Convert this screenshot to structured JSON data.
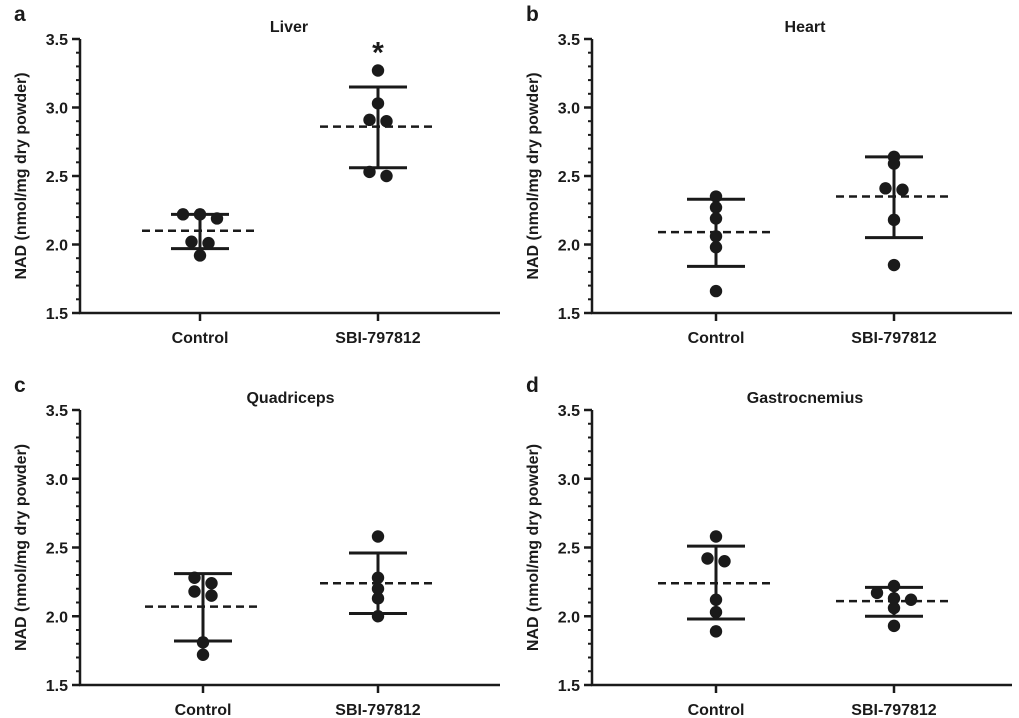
{
  "figure": {
    "style": {
      "ink": "#1a1a1a",
      "mean_line": "dashed",
      "error_bars": "mean ± SD"
    }
  },
  "chart_data": [
    {
      "panel": "a",
      "type": "scatter",
      "title": "Liver",
      "ylabel": "NAD (nmol/mg dry powder)",
      "ylim": [
        1.5,
        3.5
      ],
      "yticks": [
        1.5,
        2.0,
        2.5,
        3.0,
        3.5
      ],
      "ytick_labels": [
        "1.5",
        "2.0",
        "2.5",
        "3.0",
        "3.5"
      ],
      "categories": [
        "Control",
        "SBI-797812"
      ],
      "groups": [
        {
          "category": "Control",
          "points": [
            2.22,
            2.22,
            2.19,
            2.02,
            2.01,
            1.92
          ],
          "mean": 2.1,
          "err_upper": 2.22,
          "err_lower": 1.97,
          "annotation": ""
        },
        {
          "category": "SBI-797812",
          "points": [
            3.27,
            3.03,
            2.91,
            2.9,
            2.53,
            2.5
          ],
          "mean": 2.86,
          "err_upper": 3.15,
          "err_lower": 2.56,
          "annotation": "*"
        }
      ]
    },
    {
      "panel": "b",
      "type": "scatter",
      "title": "Heart",
      "ylabel": "NAD (nmol/mg dry powder)",
      "ylim": [
        1.5,
        3.5
      ],
      "yticks": [
        1.5,
        2.0,
        2.5,
        3.0,
        3.5
      ],
      "ytick_labels": [
        "1.5",
        "2.0",
        "2.5",
        "3.0",
        "3.5"
      ],
      "categories": [
        "Control",
        "SBI-797812"
      ],
      "groups": [
        {
          "category": "Control",
          "points": [
            2.35,
            2.27,
            2.19,
            2.06,
            1.98,
            1.66
          ],
          "mean": 2.09,
          "err_upper": 2.33,
          "err_lower": 1.84,
          "annotation": ""
        },
        {
          "category": "SBI-797812",
          "points": [
            2.64,
            2.59,
            2.41,
            2.4,
            2.18,
            1.85
          ],
          "mean": 2.35,
          "err_upper": 2.64,
          "err_lower": 2.05,
          "annotation": ""
        }
      ]
    },
    {
      "panel": "c",
      "type": "scatter",
      "title": "Quadriceps",
      "ylabel": "NAD (nmol/mg dry powder)",
      "ylim": [
        1.5,
        3.5
      ],
      "yticks": [
        1.5,
        2.0,
        2.5,
        3.0,
        3.5
      ],
      "ytick_labels": [
        "1.5",
        "2.0",
        "2.5",
        "3.0",
        "3.5"
      ],
      "categories": [
        "Control",
        "SBI-797812"
      ],
      "groups": [
        {
          "category": "Control",
          "points": [
            2.28,
            2.24,
            2.18,
            2.15,
            1.81,
            1.72
          ],
          "mean": 2.07,
          "err_upper": 2.31,
          "err_lower": 1.82,
          "annotation": ""
        },
        {
          "category": "SBI-797812",
          "points": [
            2.58,
            2.28,
            2.2,
            2.13,
            2.0
          ],
          "mean": 2.24,
          "err_upper": 2.46,
          "err_lower": 2.02,
          "annotation": ""
        }
      ]
    },
    {
      "panel": "d",
      "type": "scatter",
      "title": "Gastrocnemius",
      "ylabel": "NAD (nmol/mg dry powder)",
      "ylim": [
        1.5,
        3.5
      ],
      "yticks": [
        1.5,
        2.0,
        2.5,
        3.0,
        3.5
      ],
      "ytick_labels": [
        "1.5",
        "2.0",
        "2.5",
        "3.0",
        "3.5"
      ],
      "categories": [
        "Control",
        "SBI-797812"
      ],
      "groups": [
        {
          "category": "Control",
          "points": [
            2.58,
            2.42,
            2.4,
            2.12,
            2.03,
            1.89
          ],
          "mean": 2.24,
          "err_upper": 2.51,
          "err_lower": 1.98,
          "annotation": ""
        },
        {
          "category": "SBI-797812",
          "points": [
            2.22,
            2.17,
            2.13,
            2.12,
            2.06,
            1.93
          ],
          "mean": 2.11,
          "err_upper": 2.21,
          "err_lower": 2.0,
          "annotation": ""
        }
      ]
    }
  ]
}
